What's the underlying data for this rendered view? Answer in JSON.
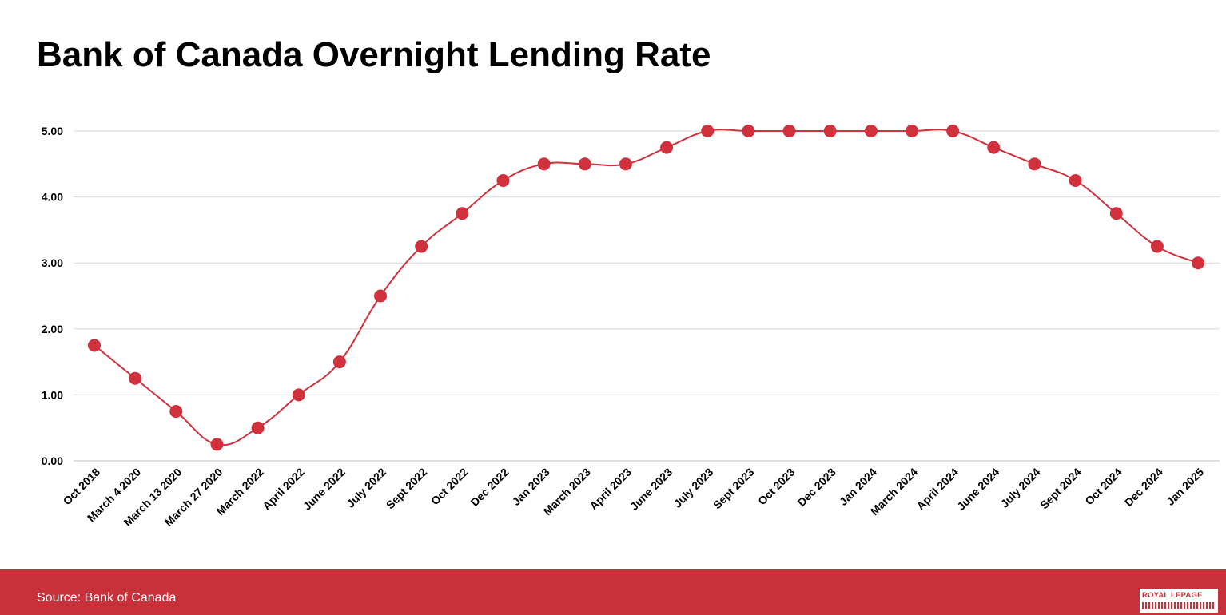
{
  "title": "Bank of Canada Overnight Lending Rate",
  "source": "Source: Bank of Canada",
  "logo": {
    "text": "ROYAL LEPAGE"
  },
  "colors": {
    "accent": "#c8313a",
    "series": "#d0313c",
    "grid": "#d9d9d9",
    "axis": "#bfbfbf"
  },
  "chart_data": {
    "type": "line",
    "title": "Bank of Canada Overnight Lending Rate",
    "xlabel": "",
    "ylabel": "",
    "ylim": [
      0,
      5
    ],
    "yticks": [
      "0.00",
      "1.00",
      "2.00",
      "3.00",
      "4.00",
      "5.00"
    ],
    "grid": true,
    "legend": "none",
    "smooth": true,
    "categories": [
      "Oct 2018",
      "March 4 2020",
      "March 13 2020",
      "March 27 2020",
      "March 2022",
      "April 2022",
      "June 2022",
      "July 2022",
      "Sept 2022",
      "Oct 2022",
      "Dec 2022",
      "Jan 2023",
      "March 2023",
      "April 2023",
      "June 2023",
      "July 2023",
      "Sept 2023",
      "Oct 2023",
      "Dec 2023",
      "Jan 2024",
      "March 2024",
      "April 2024",
      "June 2024",
      "July 2024",
      "Sept 2024",
      "Oct 2024",
      "Dec 2024",
      "Jan 2025"
    ],
    "series": [
      {
        "values": [
          1.75,
          1.25,
          0.75,
          0.25,
          0.5,
          1.0,
          1.5,
          2.5,
          3.25,
          3.75,
          4.25,
          4.5,
          4.5,
          4.5,
          4.75,
          5.0,
          5.0,
          5.0,
          5.0,
          5.0,
          5.0,
          5.0,
          4.75,
          4.5,
          4.25,
          3.75,
          3.25,
          3.0
        ]
      }
    ]
  }
}
